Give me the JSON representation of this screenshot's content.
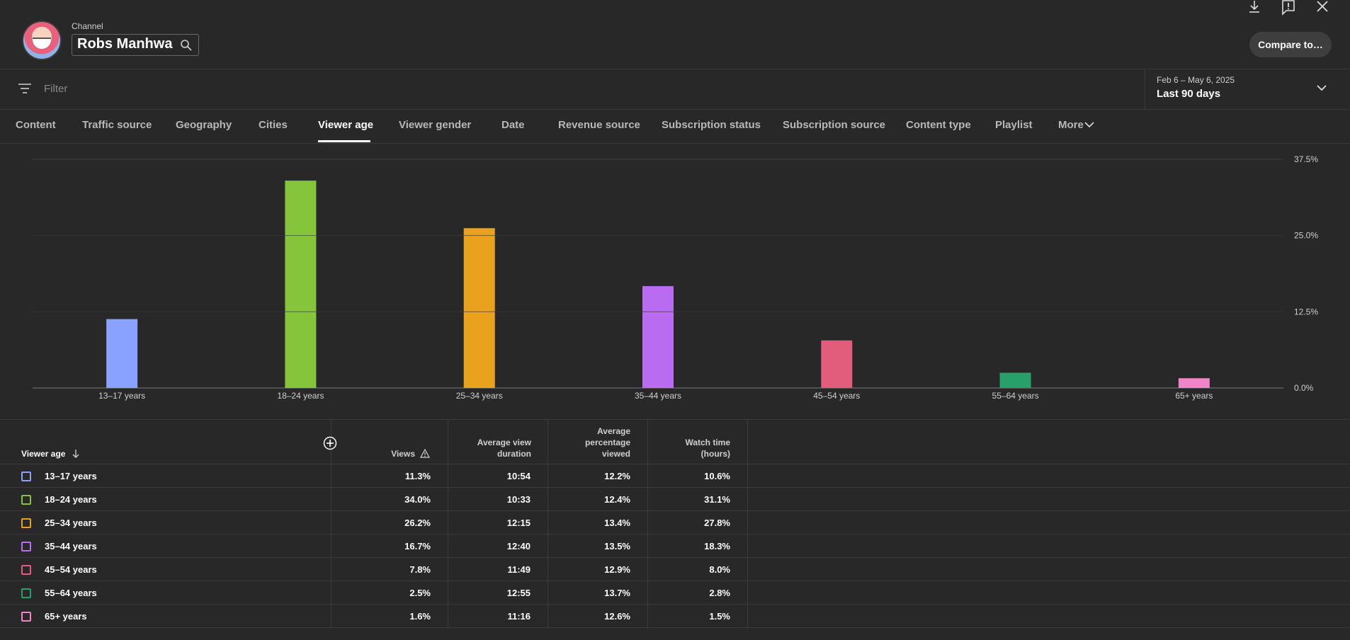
{
  "header": {
    "channel_label": "Channel",
    "channel_name": "Robs Manhwa",
    "compare_button": "Compare to…"
  },
  "filter": {
    "placeholder": "Filter"
  },
  "date": {
    "range": "Feb 6 – May 6, 2025",
    "label": "Last 90 days"
  },
  "tabs": [
    {
      "label": "Content"
    },
    {
      "label": "Traffic source"
    },
    {
      "label": "Geography"
    },
    {
      "label": "Cities"
    },
    {
      "label": "Viewer age",
      "active": true
    },
    {
      "label": "Viewer gender"
    },
    {
      "label": "Date"
    },
    {
      "label": "Revenue source"
    },
    {
      "label": "Subscription status"
    },
    {
      "label": "Subscription source"
    },
    {
      "label": "Content type"
    },
    {
      "label": "Playlist"
    },
    {
      "label": "More"
    }
  ],
  "chart_data": {
    "type": "bar",
    "categories": [
      "13–17 years",
      "18–24 years",
      "25–34 years",
      "35–44 years",
      "45–54 years",
      "55–64 years",
      "65+ years"
    ],
    "values": [
      11.3,
      34.0,
      26.2,
      16.7,
      7.8,
      2.5,
      1.6
    ],
    "colors": [
      "#8aa2ff",
      "#84c53a",
      "#eaa21e",
      "#b96cf2",
      "#e25c7c",
      "#27a06a",
      "#f285c8"
    ],
    "y_ticks": [
      "37.5%",
      "25.0%",
      "12.5%",
      "0.0%"
    ],
    "ylim": [
      0,
      37.5
    ],
    "grid": true
  },
  "table": {
    "headers": {
      "viewer_age": "Viewer age",
      "views": "Views",
      "avg_view_duration_1": "Average view",
      "avg_view_duration_2": "duration",
      "avg_pct_1": "Average",
      "avg_pct_2": "percentage",
      "avg_pct_3": "viewed",
      "watch_time_1": "Watch time",
      "watch_time_2": "(hours)"
    },
    "rows": [
      {
        "label": "13–17 years",
        "views": "11.3%",
        "duration": "10:54",
        "pct": "12.2%",
        "watch": "10.6%",
        "color": "#8aa2ff"
      },
      {
        "label": "18–24 years",
        "views": "34.0%",
        "duration": "10:33",
        "pct": "12.4%",
        "watch": "31.1%",
        "color": "#84c53a"
      },
      {
        "label": "25–34 years",
        "views": "26.2%",
        "duration": "12:15",
        "pct": "13.4%",
        "watch": "27.8%",
        "color": "#eaa21e"
      },
      {
        "label": "35–44 years",
        "views": "16.7%",
        "duration": "12:40",
        "pct": "13.5%",
        "watch": "18.3%",
        "color": "#b96cf2"
      },
      {
        "label": "45–54 years",
        "views": "7.8%",
        "duration": "11:49",
        "pct": "12.9%",
        "watch": "8.0%",
        "color": "#e25c7c"
      },
      {
        "label": "55–64 years",
        "views": "2.5%",
        "duration": "12:55",
        "pct": "13.7%",
        "watch": "2.8%",
        "color": "#27a06a"
      },
      {
        "label": "65+ years",
        "views": "1.6%",
        "duration": "11:16",
        "pct": "12.6%",
        "watch": "1.5%",
        "color": "#f285c8"
      }
    ]
  }
}
